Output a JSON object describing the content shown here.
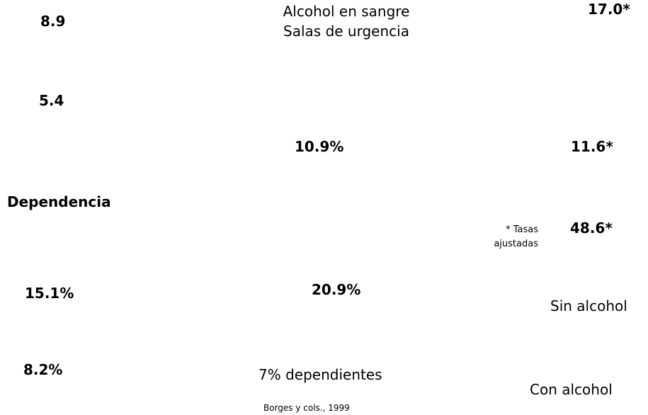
{
  "header": {
    "title_lines": [
      "Alcohol en sangre",
      "Salas de urgencia"
    ]
  },
  "figures": {
    "top_left": "8.9",
    "top_right": "17.0*",
    "left_second": "5.4",
    "mid_first": "10.9%",
    "right_second": "11.6*",
    "section_label": "Dependencia",
    "note_lines": [
      "* Tasas",
      "ajustadas"
    ],
    "right_third": "48.6*",
    "left_fourth": "15.1%",
    "mid_second": "20.9%",
    "label_without": "Sin alcohol",
    "left_fifth": "8.2%",
    "mid_third": "7% dependientes",
    "label_with": "Con alcohol"
  },
  "footer": {
    "source": "Borges y cols., 1999"
  }
}
